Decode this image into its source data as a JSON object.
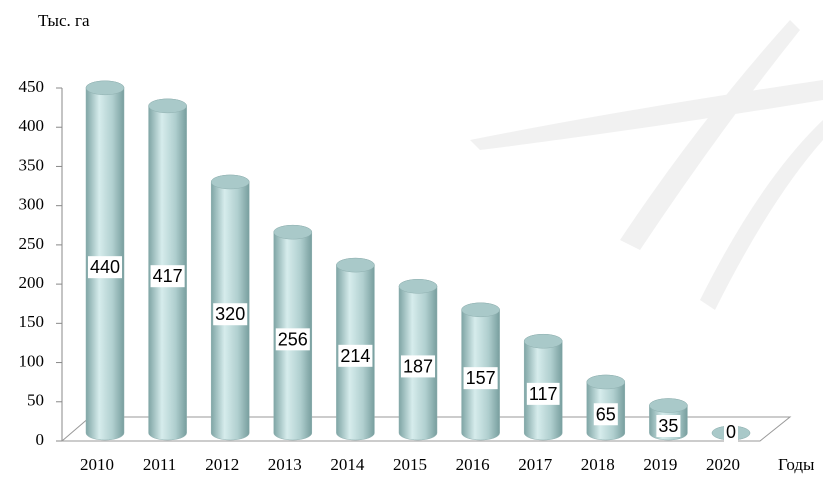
{
  "chart_data": {
    "type": "bar",
    "y_axis_label": "Тыс. га",
    "x_axis_label": "Годы",
    "categories": [
      "2010",
      "2011",
      "2012",
      "2013",
      "2014",
      "2015",
      "2016",
      "2017",
      "2018",
      "2019",
      "2020"
    ],
    "values": [
      440,
      417,
      320,
      256,
      214,
      187,
      157,
      117,
      65,
      35,
      0
    ],
    "color": "#a9c9c9",
    "ylim": [
      0,
      450
    ],
    "yticks": [
      0,
      50,
      100,
      150,
      200,
      250,
      300,
      350,
      400,
      450
    ],
    "grid": false
  }
}
